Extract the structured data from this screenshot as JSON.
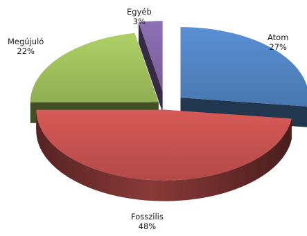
{
  "chart_data": {
    "type": "pie",
    "three_d": true,
    "exploded": true,
    "legend": "none",
    "slices": [
      {
        "label": "Atom",
        "value": 27,
        "value_label": "27%",
        "color": "#4f81bd"
      },
      {
        "label": "Fosszilis",
        "value": 48,
        "value_label": "48%",
        "color": "#c0504d"
      },
      {
        "label": "Megújuló",
        "value": 22,
        "value_label": "22%",
        "color": "#9bbb59"
      },
      {
        "label": "Egyéb",
        "value": 3,
        "value_label": "3%",
        "color": "#8064a2"
      }
    ]
  }
}
